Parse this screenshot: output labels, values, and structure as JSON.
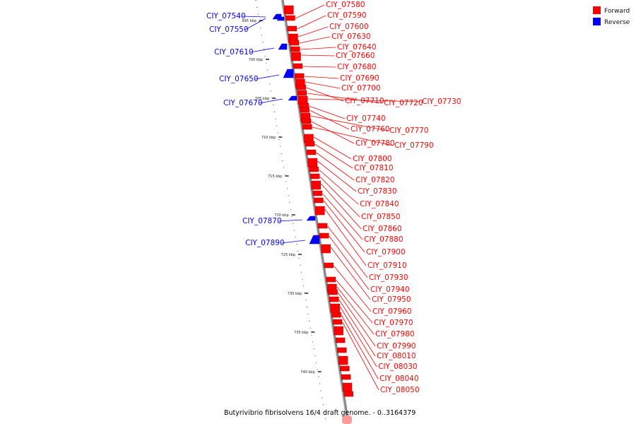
{
  "colors": {
    "forward": "#ff0000",
    "reverse": "#0000ff",
    "backbone": "#888888",
    "tick": "#222222"
  },
  "legend": {
    "forward_label": "Forward",
    "reverse_label": "Reverse"
  },
  "caption": "Butyrivibrio fibrisolvens 16/4 draft genome. - 0..3164379",
  "ticks": [
    "695 kbp",
    "700 kbp",
    "705 kbp",
    "710 kbp",
    "715 kbp",
    "720 kbp",
    "725 kbp",
    "730 kbp",
    "735 kbp",
    "740 kbp"
  ],
  "forward_genes": [
    "CIY_07580",
    "CIY_07590",
    "CIY_07600",
    "CIY_07630",
    "CIY_07640",
    "CIY_07660",
    "CIY_07680",
    "CIY_07690",
    "CIY_07700",
    "CIY_07710",
    "CIY_07720",
    "CIY_07730",
    "CIY_07740",
    "CIY_07760",
    "CIY_07770",
    "CIY_07780",
    "CIY_07790",
    "CIY_07800",
    "CIY_07810",
    "CIY_07820",
    "CIY_07830",
    "CIY_07840",
    "CIY_07850",
    "CIY_07860",
    "CIY_07880",
    "CIY_07900",
    "CIY_07910",
    "CIY_07930",
    "CIY_07940",
    "CIY_07950",
    "CIY_07960",
    "CIY_07970",
    "CIY_07980",
    "CIY_07990",
    "CIY_08010",
    "CIY_08030",
    "CIY_08040",
    "CIY_08050"
  ],
  "reverse_genes": [
    "CIY_07540",
    "CIY_07550",
    "CIY_07610",
    "CIY_07650",
    "CIY_07670",
    "CIY_07870",
    "CIY_07890"
  ]
}
